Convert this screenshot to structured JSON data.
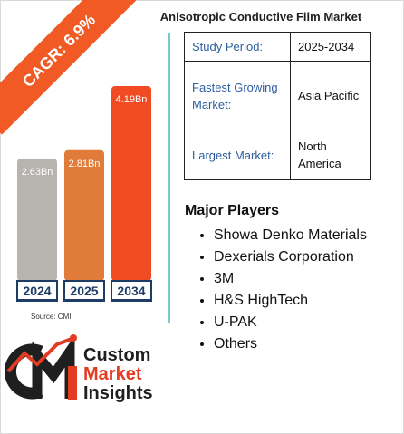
{
  "cagr_label": "CAGR: 6.9%",
  "title": "Anisotropic Conductive Film Market",
  "source": "Source: CMI",
  "info": [
    {
      "key": "Study Period:",
      "value": "2025-2034"
    },
    {
      "key": "Fastest Growing Market:",
      "value": "Asia Pacific"
    },
    {
      "key": "Largest Market:",
      "value": "North America"
    }
  ],
  "players_heading": "Major Players",
  "players": [
    "Showa Denko Materials",
    "Dexerials Corporation",
    "3M",
    "H&S HighTech",
    "U-PAK",
    "Others"
  ],
  "logo": {
    "line1": "Custom",
    "line2": "Market",
    "line3": "Insights"
  },
  "colors": {
    "accent": "#f15a24",
    "bar2024": "#b7b3ae",
    "bar2025": "#e07b39",
    "bar2034": "#f04b23",
    "divider": "#7cc6cf"
  },
  "chart_data": {
    "type": "bar",
    "categories": [
      "2024",
      "2025",
      "2034"
    ],
    "values": [
      2.63,
      2.81,
      4.19
    ],
    "data_labels": [
      "2.63Bn",
      "2.81Bn",
      "4.19Bn"
    ],
    "title": "",
    "xlabel": "",
    "ylabel": "",
    "ylim": [
      0,
      4.19
    ],
    "grid": false
  }
}
